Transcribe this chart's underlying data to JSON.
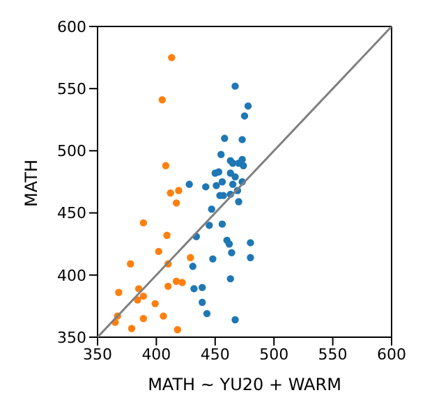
{
  "chart_data": {
    "type": "scatter",
    "xlabel": "MATH ~ YU20 + WARM",
    "ylabel": "MATH",
    "xlim": [
      350,
      600
    ],
    "ylim": [
      350,
      600
    ],
    "xticks": [
      350,
      400,
      450,
      500,
      550,
      600
    ],
    "yticks": [
      350,
      400,
      450,
      500,
      550,
      600
    ],
    "marker": "circle",
    "series": [
      {
        "color": "#1f77b4",
        "x": [
          428,
          442,
          434,
          431,
          432,
          439,
          439,
          443,
          448,
          445,
          467,
          478,
          475,
          458,
          473,
          455,
          463,
          465,
          470,
          473,
          474,
          450,
          453,
          463,
          467,
          456,
          451,
          465,
          473,
          469,
          454,
          457,
          463,
          470,
          447,
          456,
          460,
          462,
          480,
          464,
          480,
          463,
          467
        ],
        "values": [
          473,
          471,
          431,
          407,
          389,
          390,
          378,
          369,
          413,
          440,
          552,
          536,
          528,
          510,
          509,
          497,
          492,
          490,
          490,
          493,
          488,
          482,
          483,
          482,
          479,
          475,
          472,
          473,
          475,
          468,
          464,
          464,
          465,
          459,
          453,
          441,
          428,
          425,
          426,
          418,
          414,
          397,
          364
        ]
      },
      {
        "color": "#ff7f0e",
        "x": [
          413,
          405,
          408,
          412,
          419,
          417,
          389,
          409,
          402,
          378,
          429,
          410,
          385,
          368,
          389,
          384,
          399,
          410,
          417,
          422,
          367,
          365,
          379,
          389,
          406,
          418
        ],
        "values": [
          575,
          541,
          488,
          466,
          468,
          458,
          442,
          432,
          419,
          409,
          414,
          409,
          389,
          386,
          383,
          380,
          377,
          391,
          395,
          394,
          367,
          362,
          357,
          365,
          367,
          356
        ]
      },
      {
        "type": "line",
        "color": "#808080",
        "x": [
          350,
          600
        ],
        "values": [
          350,
          600
        ],
        "marker": "none"
      }
    ]
  }
}
